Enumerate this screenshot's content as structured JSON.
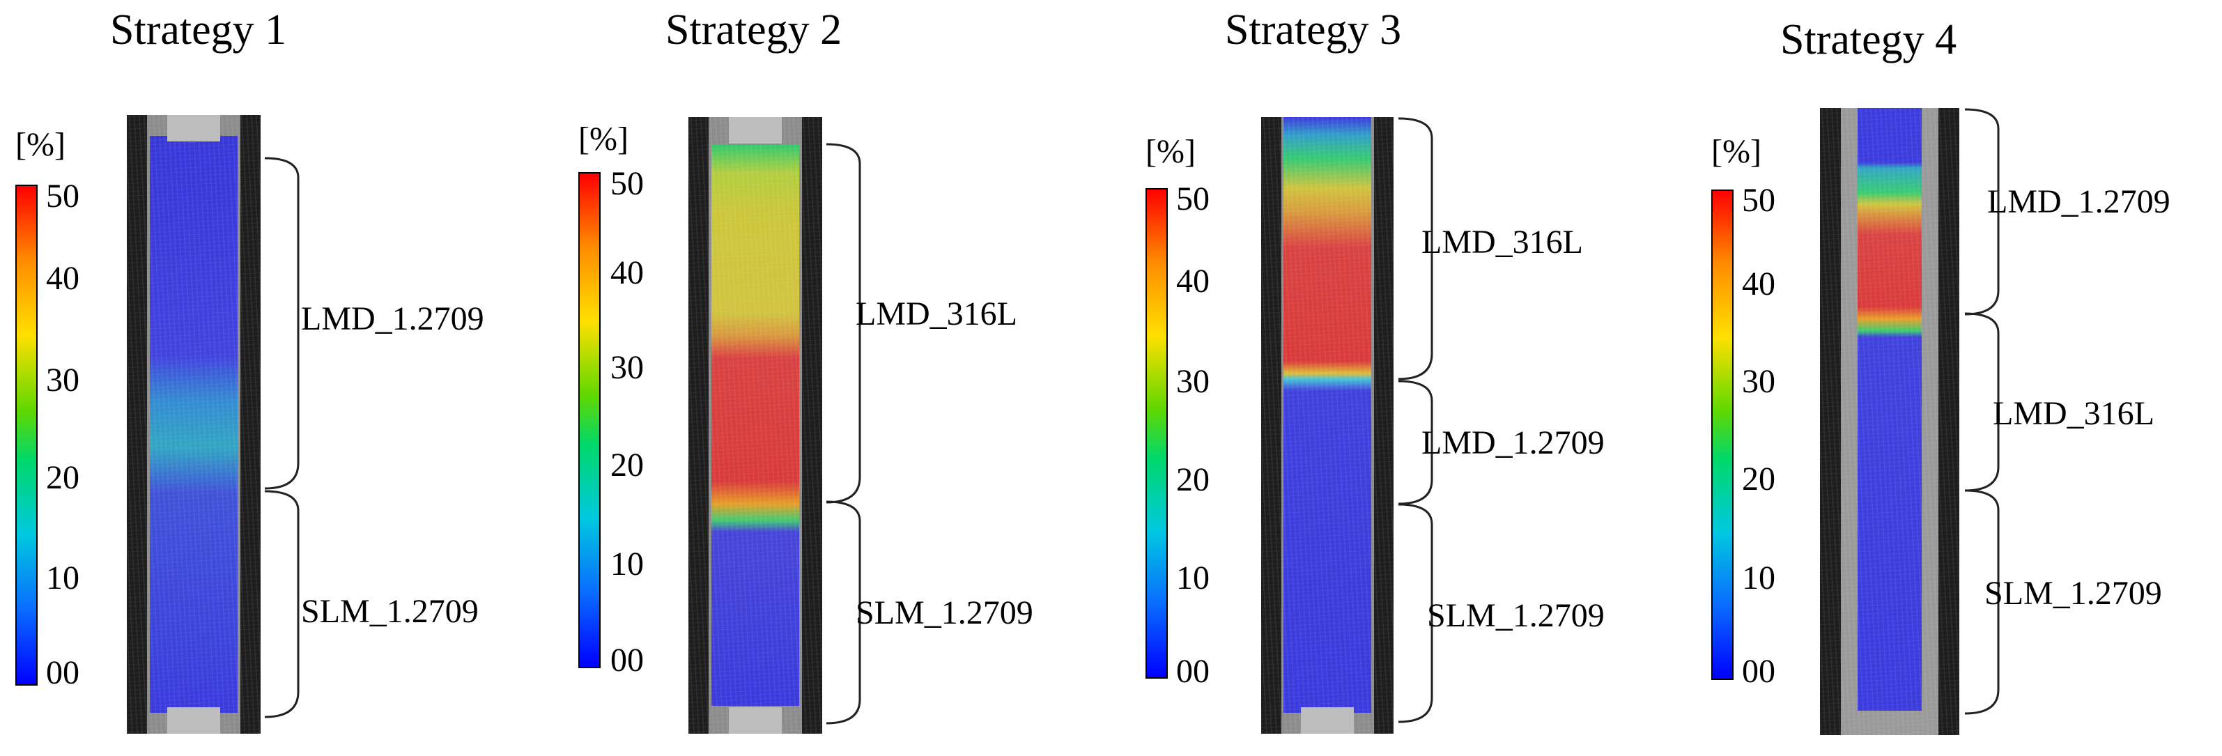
{
  "figure": {
    "colorbar": {
      "unit_label": "[%]",
      "ticks": [
        "50",
        "40",
        "30",
        "20",
        "10",
        "00"
      ],
      "colors": [
        "#0000ff",
        "#0a6cff",
        "#00c8e0",
        "#00d86a",
        "#ffe000",
        "#ff8c00",
        "#ff0000"
      ]
    },
    "panels": [
      {
        "title": "Strategy 1",
        "upper_label": "LMD_1.2709",
        "lower_label": "SLM_1.2709"
      },
      {
        "title": "Strategy 2",
        "upper_label": "LMD_316L",
        "lower_label": "SLM_1.2709"
      },
      {
        "title": "Strategy 3",
        "upper_label": "LMD_316L",
        "middle_label": "LMD_1.2709",
        "lower_label": "SLM_1.2709"
      },
      {
        "title": "Strategy 4",
        "upper_label": "LMD_1.2709",
        "middle_label": "LMD_316L",
        "lower_label": "SLM_1.2709"
      }
    ]
  }
}
